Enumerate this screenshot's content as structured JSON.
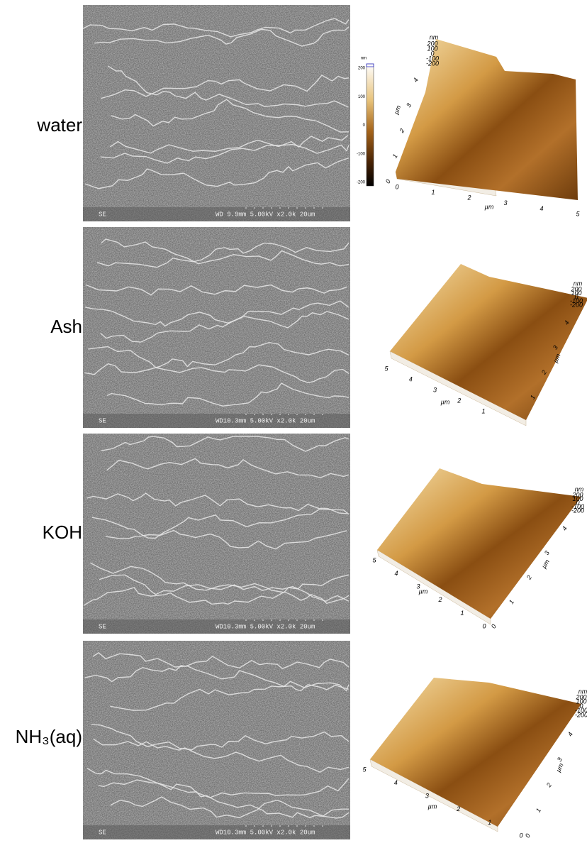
{
  "colorbar": {
    "unit": "nm",
    "ticks": [
      200,
      100,
      0,
      -100,
      -200
    ]
  },
  "rows": [
    {
      "label": "water",
      "sem": {
        "detector": "SE",
        "info": "WD 9.9mm 5.00kV x2.0k  20um"
      },
      "afm": {
        "x": {
          "unit": "µm",
          "ticks": [
            0,
            1,
            2,
            3,
            4,
            5
          ]
        },
        "y": {
          "unit": "µm",
          "ticks": [
            0,
            1,
            2,
            3,
            4
          ]
        },
        "z": {
          "unit": "nm",
          "ticks": [
            200,
            100,
            0,
            -100,
            -200
          ]
        }
      }
    },
    {
      "label": "Ash",
      "sem": {
        "detector": "SE",
        "info": "WD10.3mm 5.00kV x2.0k  20um"
      },
      "afm": {
        "x": {
          "unit": "µm",
          "ticks": [
            5,
            4,
            3,
            2,
            1
          ]
        },
        "y": {
          "unit": "µm",
          "ticks": [
            1,
            2,
            3,
            4
          ]
        },
        "z": {
          "unit": "nm",
          "ticks": [
            200,
            100,
            0,
            -100,
            -200
          ]
        }
      }
    },
    {
      "label": "KOH",
      "sem": {
        "detector": "SE",
        "info": "WD10.3mm 5.00kV x2.0k  20um"
      },
      "afm": {
        "x": {
          "unit": "µm",
          "ticks": [
            5,
            4,
            3,
            2,
            1,
            0
          ]
        },
        "y": {
          "unit": "µm",
          "ticks": [
            0,
            1,
            2,
            3,
            4
          ]
        },
        "z": {
          "unit": "nm",
          "ticks": [
            200,
            100,
            0,
            -100,
            -200
          ]
        }
      }
    },
    {
      "label": "NH₃(aq)",
      "sem": {
        "detector": "SE",
        "info": "WD10.3mm 5.00kV x2.0k  20um"
      },
      "afm": {
        "x": {
          "unit": "µm",
          "ticks": [
            5,
            4,
            3,
            2,
            1,
            0
          ]
        },
        "y": {
          "unit": "µm",
          "ticks": [
            0,
            1,
            2,
            3,
            4
          ]
        },
        "z": {
          "unit": "nm",
          "ticks": [
            200,
            100,
            0,
            -100,
            -200
          ]
        }
      }
    }
  ]
}
